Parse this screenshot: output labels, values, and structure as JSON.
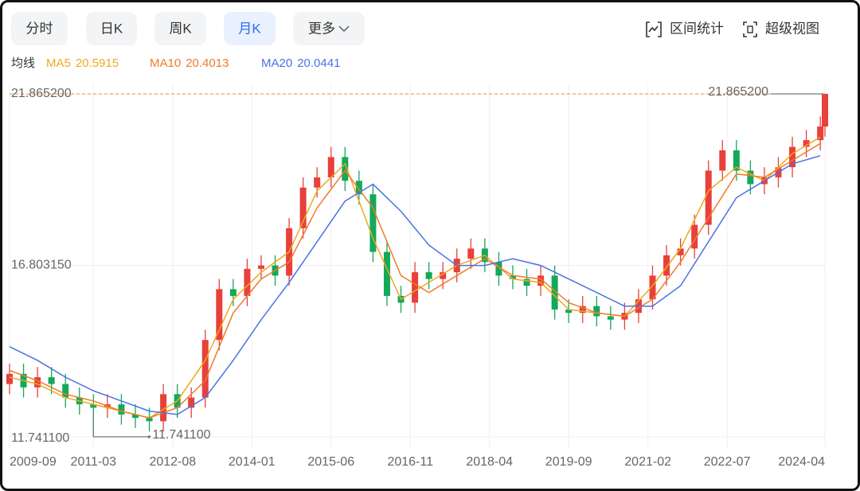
{
  "toolbar": {
    "tabs": [
      "分时",
      "日K",
      "周K",
      "月K",
      "更多"
    ],
    "active_tab": 3,
    "tools": [
      "区间统计",
      "超级视图"
    ]
  },
  "chart_data": {
    "type": "candlestick",
    "legend_label": "均线",
    "x": [
      "2009-09",
      "2009-12",
      "2010-03",
      "2010-06",
      "2010-09",
      "2010-12",
      "2011-03",
      "2011-06",
      "2011-09",
      "2011-12",
      "2012-03",
      "2012-06",
      "2012-09",
      "2012-12",
      "2013-03",
      "2013-06",
      "2013-09",
      "2013-12",
      "2014-03",
      "2014-06",
      "2014-09",
      "2014-12",
      "2015-03",
      "2015-06",
      "2015-09",
      "2015-12",
      "2016-03",
      "2016-06",
      "2016-09",
      "2016-12",
      "2017-03",
      "2017-06",
      "2017-09",
      "2017-12",
      "2018-03",
      "2018-06",
      "2018-09",
      "2018-12",
      "2019-03",
      "2019-06",
      "2019-09",
      "2019-12",
      "2020-03",
      "2020-06",
      "2020-09",
      "2020-12",
      "2021-03",
      "2021-06",
      "2021-09",
      "2021-12",
      "2022-03",
      "2022-06",
      "2022-09",
      "2022-12",
      "2023-03",
      "2023-06",
      "2023-09",
      "2023-12",
      "2024-03",
      "2024-04"
    ],
    "open": [
      13.3,
      13.6,
      13.2,
      13.5,
      13.3,
      12.9,
      12.7,
      12.6,
      12.7,
      12.4,
      12.3,
      12.2,
      13.0,
      12.6,
      12.9,
      14.6,
      16.1,
      15.9,
      16.7,
      16.8,
      16.5,
      17.9,
      19.1,
      19.4,
      20.0,
      19.3,
      18.9,
      17.2,
      15.9,
      15.7,
      16.6,
      16.4,
      16.6,
      17.0,
      17.3,
      16.9,
      16.5,
      16.4,
      16.2,
      16.5,
      15.5,
      15.4,
      15.6,
      15.3,
      15.2,
      15.4,
      15.8,
      16.5,
      17.1,
      17.3,
      18.0,
      19.6,
      20.2,
      19.6,
      19.2,
      19.4,
      19.7,
      20.3,
      20.5,
      20.9
    ],
    "high": [
      13.9,
      13.9,
      13.8,
      13.8,
      13.6,
      13.2,
      13.0,
      13.0,
      13.0,
      12.7,
      12.6,
      13.3,
      13.3,
      13.2,
      14.9,
      16.4,
      16.4,
      17.0,
      17.1,
      17.1,
      18.2,
      19.4,
      19.7,
      20.3,
      20.3,
      19.6,
      19.2,
      17.5,
      16.2,
      16.9,
      16.9,
      16.9,
      17.3,
      17.6,
      17.6,
      17.2,
      16.8,
      16.7,
      16.8,
      16.8,
      15.8,
      15.9,
      15.9,
      15.6,
      15.7,
      16.1,
      16.8,
      17.4,
      17.6,
      18.3,
      19.9,
      20.5,
      20.5,
      19.9,
      19.7,
      20.0,
      20.6,
      20.8,
      21.2,
      21.8652
    ],
    "low": [
      13.0,
      12.9,
      12.9,
      13.0,
      12.6,
      12.4,
      11.7411,
      12.3,
      12.1,
      12.0,
      11.9,
      11.9,
      12.3,
      12.3,
      12.6,
      14.3,
      15.6,
      15.6,
      16.4,
      16.2,
      16.2,
      17.6,
      18.8,
      19.1,
      19.0,
      18.6,
      16.9,
      15.6,
      15.4,
      15.4,
      16.1,
      16.1,
      16.3,
      16.7,
      16.6,
      16.2,
      16.1,
      15.9,
      15.9,
      15.2,
      15.1,
      15.1,
      15.0,
      14.9,
      14.9,
      15.1,
      15.5,
      16.2,
      16.8,
      17.0,
      17.7,
      19.3,
      19.3,
      18.9,
      18.9,
      19.1,
      19.4,
      20.0,
      20.2,
      20.6
    ],
    "close": [
      13.6,
      13.2,
      13.5,
      13.3,
      12.9,
      12.7,
      12.6,
      12.7,
      12.4,
      12.3,
      12.2,
      13.0,
      12.6,
      12.9,
      14.6,
      16.1,
      15.9,
      16.7,
      16.8,
      16.5,
      17.9,
      19.1,
      19.4,
      20.0,
      19.3,
      18.9,
      17.2,
      15.9,
      15.7,
      16.6,
      16.4,
      16.6,
      17.0,
      17.3,
      16.9,
      16.5,
      16.4,
      16.2,
      16.5,
      15.5,
      15.4,
      15.6,
      15.3,
      15.2,
      15.4,
      15.8,
      16.5,
      17.1,
      17.3,
      18.0,
      19.6,
      20.2,
      19.6,
      19.2,
      19.4,
      19.7,
      20.3,
      20.5,
      20.9,
      21.8652
    ],
    "up_color": "#e8403a",
    "down_color": "#14a85a",
    "series": [
      {
        "name": "MA5",
        "latest": 20.5915,
        "color": "#f0a81c",
        "x": [
          "2009-09",
          "2010-03",
          "2010-09",
          "2011-03",
          "2011-09",
          "2012-03",
          "2012-09",
          "2013-03",
          "2013-09",
          "2014-03",
          "2014-09",
          "2015-03",
          "2015-09",
          "2016-03",
          "2016-09",
          "2017-03",
          "2017-09",
          "2018-03",
          "2018-09",
          "2019-03",
          "2019-09",
          "2020-03",
          "2020-09",
          "2021-03",
          "2021-09",
          "2022-03",
          "2022-09",
          "2023-03",
          "2023-09",
          "2024-03"
        ],
        "values": [
          13.5,
          13.3,
          12.9,
          12.7,
          12.5,
          12.3,
          12.8,
          14.0,
          15.8,
          16.6,
          17.2,
          19.0,
          19.8,
          17.6,
          15.8,
          16.3,
          16.8,
          17.1,
          16.4,
          16.3,
          15.5,
          15.4,
          15.3,
          16.2,
          17.3,
          19.0,
          19.7,
          19.3,
          20.1,
          20.59
        ]
      },
      {
        "name": "MA10",
        "latest": 20.4013,
        "color": "#f07a2a",
        "x": [
          "2009-09",
          "2010-03",
          "2010-09",
          "2011-03",
          "2011-09",
          "2012-03",
          "2012-09",
          "2013-03",
          "2013-09",
          "2014-03",
          "2014-09",
          "2015-03",
          "2015-09",
          "2016-03",
          "2016-09",
          "2017-03",
          "2017-09",
          "2018-03",
          "2018-09",
          "2019-03",
          "2019-09",
          "2020-03",
          "2020-09",
          "2021-03",
          "2021-09",
          "2022-03",
          "2022-09",
          "2023-03",
          "2023-09",
          "2024-03"
        ],
        "values": [
          13.7,
          13.4,
          13.0,
          12.8,
          12.5,
          12.3,
          12.6,
          13.4,
          15.4,
          16.4,
          16.9,
          18.5,
          19.6,
          18.5,
          16.5,
          16.0,
          16.5,
          17.0,
          16.5,
          16.4,
          15.7,
          15.4,
          15.3,
          15.8,
          16.9,
          18.2,
          19.5,
          19.4,
          19.9,
          20.4
        ]
      },
      {
        "name": "MA20",
        "latest": 20.0441,
        "color": "#4a72e4",
        "x": [
          "2009-09",
          "2010-03",
          "2010-09",
          "2011-03",
          "2011-09",
          "2012-03",
          "2012-09",
          "2013-03",
          "2013-09",
          "2014-03",
          "2014-09",
          "2015-03",
          "2015-09",
          "2016-03",
          "2016-09",
          "2017-03",
          "2017-09",
          "2018-03",
          "2018-09",
          "2019-03",
          "2019-09",
          "2020-03",
          "2020-09",
          "2021-03",
          "2021-09",
          "2022-03",
          "2022-09",
          "2023-03",
          "2023-09",
          "2024-03"
        ],
        "values": [
          14.4,
          14.0,
          13.5,
          13.1,
          12.8,
          12.5,
          12.4,
          12.9,
          14.0,
          15.2,
          16.3,
          17.5,
          18.7,
          19.2,
          18.4,
          17.4,
          16.8,
          16.8,
          17.0,
          16.8,
          16.4,
          16.0,
          15.6,
          15.6,
          16.2,
          17.5,
          18.8,
          19.3,
          19.8,
          20.04
        ]
      }
    ],
    "xlim": [
      "2009-09",
      "2024-04"
    ],
    "xticks": [
      "2009-09",
      "2011-03",
      "2012-08",
      "2014-01",
      "2015-06",
      "2016-11",
      "2018-04",
      "2019-09",
      "2021-02",
      "2022-07",
      "2024-04"
    ],
    "ylim": [
      11.41,
      22.17
    ],
    "yticks": [
      {
        "value": 11.7411,
        "label": "11.741100"
      },
      {
        "value": 16.80315,
        "label": "16.803150"
      },
      {
        "value": 21.8652,
        "label": "21.865200"
      }
    ],
    "max_label": {
      "value": 21.8652,
      "label": "21.865200"
    },
    "min_label": {
      "value": 11.7411,
      "label": "11.741100"
    },
    "grid": true
  }
}
